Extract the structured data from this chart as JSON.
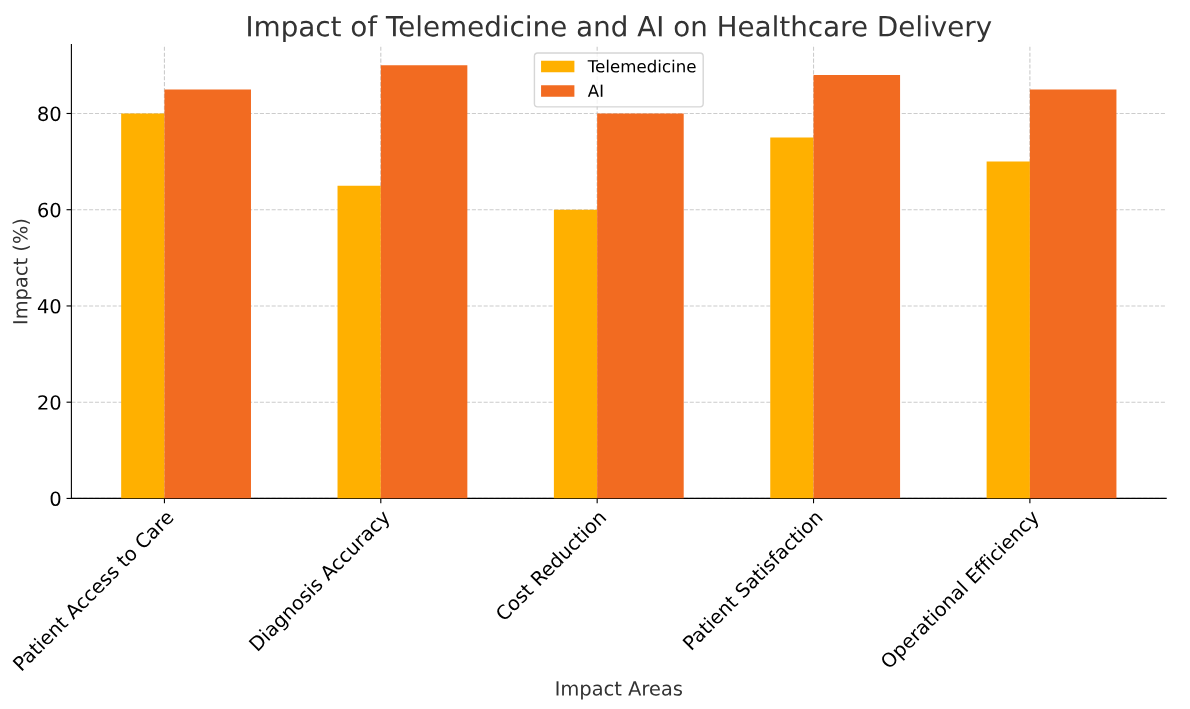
{
  "chart_data": {
    "type": "bar",
    "title": "Impact of Telemedicine and AI on Healthcare Delivery",
    "xlabel": "Impact Areas",
    "ylabel": "Impact (%)",
    "categories": [
      "Patient Access to Care",
      "Diagnosis Accuracy",
      "Cost Reduction",
      "Patient Satisfaction",
      "Operational Efficiency"
    ],
    "series": [
      {
        "name": "Telemedicine",
        "color": "#ffb000",
        "values": [
          80,
          65,
          60,
          75,
          70
        ]
      },
      {
        "name": "AI",
        "color": "#f26b21",
        "values": [
          85,
          90,
          80,
          88,
          85
        ]
      }
    ],
    "ylim": [
      0,
      94.3
    ],
    "yticks": [
      0,
      20,
      40,
      60,
      80
    ],
    "grid": true,
    "legend": "top"
  }
}
